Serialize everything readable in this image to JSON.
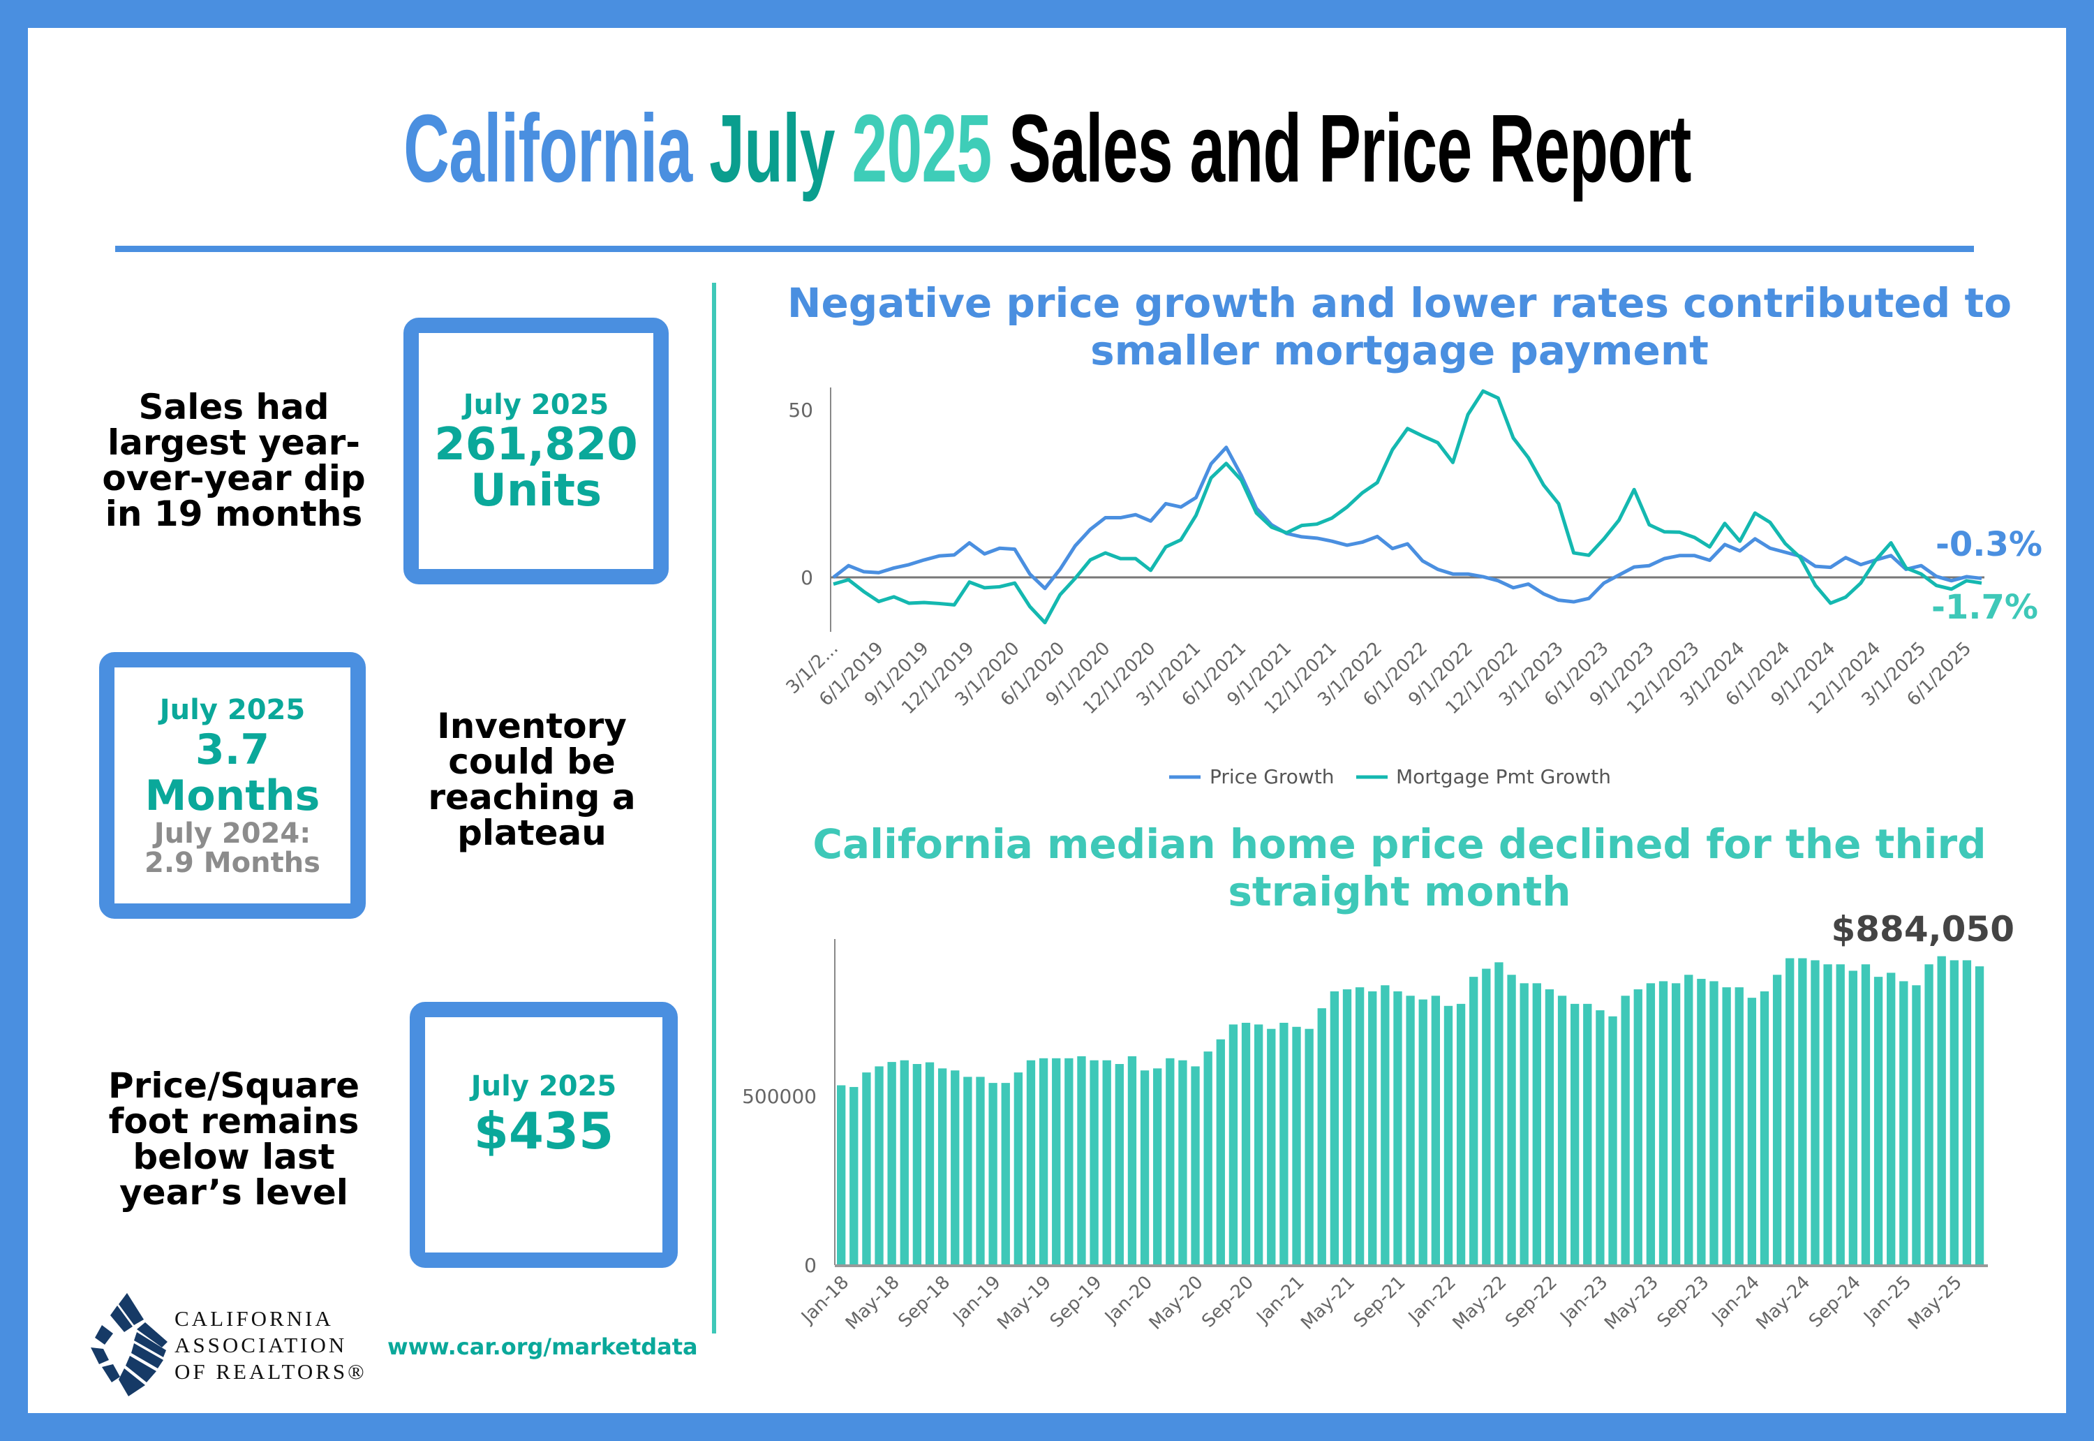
{
  "header": {
    "title_parts": [
      {
        "text": "California ",
        "color": "#4a8fe0"
      },
      {
        "text": "July ",
        "color": "#0a9e8e"
      },
      {
        "text": "2025 ",
        "color": "#3ecdb8"
      },
      {
        "text": "Sales and Price Report",
        "color": "#000000"
      }
    ]
  },
  "colors": {
    "blue": "#4a8fe0",
    "teal": "#0aa89a",
    "bar_teal": "#3ec8b8",
    "line_teal": "#14b8b0"
  },
  "sales": {
    "note": "Sales had largest year-over-year dip in 19 months",
    "period": "July 2025",
    "value": "261,820",
    "unit": "Units"
  },
  "inventory": {
    "note": "Inventory could be reaching a plateau",
    "period": "July 2025",
    "value": "3.7 Months",
    "prior_label": "July 2024:",
    "prior_value": "2.9 Months"
  },
  "price_sqft": {
    "note": "Price/Square foot remains below last year’s level",
    "period": "July 2025",
    "value": "$435"
  },
  "footer": {
    "logo_lines": [
      "CALIFORNIA",
      "ASSOCIATION",
      "OF REALTORS®"
    ],
    "url": "www.car.org/marketdata"
  },
  "chart_data": [
    {
      "type": "line",
      "title": "Negative price growth and lower rates contributed to smaller mortgage payment",
      "ylim": [
        -17,
        57
      ],
      "yticks": [
        0,
        50
      ],
      "x_tick_labels": [
        "3/1/2...",
        "6/1/2019",
        "9/1/2019",
        "12/1/2019",
        "3/1/2020",
        "6/1/2020",
        "9/1/2020",
        "12/1/2020",
        "3/1/2021",
        "6/1/2021",
        "9/1/2021",
        "12/1/2021",
        "3/1/2022",
        "6/1/2022",
        "9/1/2022",
        "12/1/2022",
        "3/1/2023",
        "6/1/2023",
        "9/1/2023",
        "12/1/2023",
        "3/1/2024",
        "6/1/2024",
        "9/1/2024",
        "12/1/2024",
        "3/1/2025",
        "6/1/2025"
      ],
      "x_start": "3/1/2019",
      "x_end": "7/1/2025",
      "legend_position": "bottom",
      "series": [
        {
          "name": "Price Growth",
          "color": "#4a8fe0",
          "end_label": "-0.3%",
          "values": [
            0,
            3.5,
            1.7,
            1.4,
            2.8,
            3.8,
            5.2,
            6.4,
            6.7,
            10.3,
            7,
            8.7,
            8.4,
            1,
            -3.3,
            2.4,
            9.4,
            14.3,
            17.8,
            17.8,
            18.7,
            16.8,
            22,
            21,
            23.8,
            33.9,
            38.8,
            30.4,
            20.6,
            15.7,
            13.1,
            12.1,
            11.7,
            10.8,
            9.6,
            10.5,
            12.2,
            8.6,
            10,
            4.9,
            2.4,
            1,
            1,
            0.2,
            -1,
            -3.1,
            -2,
            -4.9,
            -6.8,
            -7.3,
            -6.3,
            -1.7,
            0.7,
            3.1,
            3.5,
            5.6,
            6.5,
            6.5,
            5.1,
            9.8,
            7.9,
            11.5,
            8.7,
            7.5,
            6.3,
            3.3,
            3,
            5.9,
            3.8,
            5.2,
            6.5,
            2.4,
            3.5,
            0.3,
            -1,
            0.2,
            -0.3
          ]
        },
        {
          "name": "Mortgage Pmt Growth",
          "color": "#14b8b0",
          "end_label": "-1.7%",
          "values": [
            -2,
            -0.7,
            -4.2,
            -7.2,
            -5.8,
            -7.7,
            -7.5,
            -7.8,
            -8.2,
            -1.4,
            -3.1,
            -2.8,
            -1.7,
            -8.7,
            -13.5,
            -5.2,
            -0.3,
            5.2,
            7.3,
            5.6,
            5.6,
            2.1,
            9.1,
            11.2,
            18.5,
            29.7,
            34,
            29,
            19.2,
            15,
            13.3,
            15.5,
            15.9,
            17.7,
            21,
            25.2,
            28.3,
            38.1,
            44.4,
            42.2,
            40.2,
            34.3,
            48.6,
            55.6,
            53.5,
            41.6,
            35.7,
            27.6,
            22,
            7.3,
            6.6,
            11.5,
            17.1,
            26.2,
            15.7,
            13.6,
            13.5,
            11.9,
            9.1,
            16.1,
            10.8,
            19.2,
            16.4,
            10.1,
            5.9,
            -2.4,
            -7.7,
            -5.9,
            -1.7,
            5.2,
            10.3,
            2.8,
            1,
            -2.4,
            -3.5,
            -1,
            -1.7
          ]
        }
      ]
    },
    {
      "type": "bar",
      "title": "California median home price declined for the third straight month",
      "ylim": [
        0,
        1000000
      ],
      "yticks": [
        0,
        500000
      ],
      "x_start": "Jan-18",
      "x_end": "Jul-25",
      "x_tick_labels": [
        "Jan-18",
        "May-18",
        "Sep-18",
        "Jan-19",
        "May-19",
        "Sep-19",
        "Jan-20",
        "May-20",
        "Sep-20",
        "Jan-21",
        "May-21",
        "Sep-21",
        "Jan-22",
        "May-22",
        "Sep-22",
        "Jan-23",
        "May-23",
        "Sep-23",
        "Jan-24",
        "May-24",
        "Sep-24",
        "Jan-25",
        "May-25"
      ],
      "last_label": "$884,050",
      "values": [
        532000,
        527000,
        570000,
        588000,
        601000,
        606000,
        595000,
        600000,
        582000,
        576000,
        557000,
        557000,
        539000,
        539000,
        570000,
        606000,
        612000,
        612000,
        612000,
        618000,
        606000,
        606000,
        595000,
        618000,
        576000,
        582000,
        612000,
        606000,
        588000,
        632000,
        668000,
        712000,
        717000,
        712000,
        699000,
        717000,
        705000,
        699000,
        760000,
        810000,
        816000,
        822000,
        810000,
        828000,
        810000,
        797000,
        786000,
        797000,
        767000,
        773000,
        853000,
        877000,
        896000,
        859000,
        834000,
        834000,
        816000,
        797000,
        773000,
        773000,
        754000,
        736000,
        797000,
        816000,
        834000,
        840000,
        834000,
        859000,
        847000,
        840000,
        822000,
        822000,
        791000,
        810000,
        859000,
        908000,
        908000,
        902000,
        890000,
        890000,
        871000,
        890000,
        853000,
        865000,
        840000,
        828000,
        890000,
        914000,
        902000,
        902000,
        884050
      ]
    }
  ]
}
